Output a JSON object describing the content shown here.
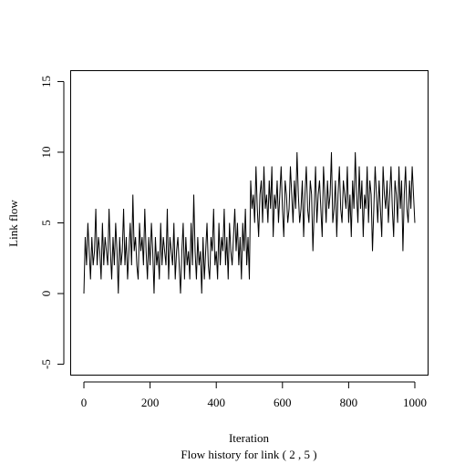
{
  "chart_data": {
    "type": "line",
    "xlabel": "Iteration",
    "ylabel": "Link flow",
    "subtitle": "Flow history for link ( 2 , 5 )",
    "x": [
      0,
      4,
      8,
      12,
      16,
      20,
      24,
      28,
      32,
      36,
      40,
      44,
      48,
      52,
      56,
      60,
      64,
      68,
      72,
      76,
      80,
      84,
      88,
      92,
      96,
      100,
      104,
      108,
      112,
      116,
      120,
      124,
      128,
      132,
      136,
      140,
      144,
      148,
      152,
      156,
      160,
      164,
      168,
      172,
      176,
      180,
      184,
      188,
      192,
      196,
      200,
      204,
      208,
      212,
      216,
      220,
      224,
      228,
      232,
      236,
      240,
      244,
      248,
      252,
      256,
      260,
      264,
      268,
      272,
      276,
      280,
      284,
      288,
      292,
      296,
      300,
      304,
      308,
      312,
      316,
      320,
      324,
      328,
      332,
      336,
      340,
      344,
      348,
      352,
      356,
      360,
      364,
      368,
      372,
      376,
      380,
      384,
      388,
      392,
      396,
      400,
      404,
      408,
      412,
      416,
      420,
      424,
      428,
      432,
      436,
      440,
      444,
      448,
      452,
      456,
      460,
      464,
      468,
      472,
      476,
      480,
      484,
      488,
      492,
      496,
      500,
      504,
      508,
      512,
      516,
      520,
      524,
      528,
      532,
      536,
      540,
      544,
      548,
      552,
      556,
      560,
      564,
      568,
      572,
      576,
      580,
      584,
      588,
      592,
      596,
      600,
      604,
      608,
      612,
      616,
      620,
      624,
      628,
      632,
      636,
      640,
      644,
      648,
      652,
      656,
      660,
      664,
      668,
      672,
      676,
      680,
      684,
      688,
      692,
      696,
      700,
      704,
      708,
      712,
      716,
      720,
      724,
      728,
      732,
      736,
      740,
      744,
      748,
      752,
      756,
      760,
      764,
      768,
      772,
      776,
      780,
      784,
      788,
      792,
      796,
      800,
      804,
      808,
      812,
      816,
      820,
      824,
      828,
      832,
      836,
      840,
      844,
      848,
      852,
      856,
      860,
      864,
      868,
      872,
      876,
      880,
      884,
      888,
      892,
      896,
      900,
      904,
      908,
      912,
      916,
      920,
      924,
      928,
      932,
      936,
      940,
      944,
      948,
      952,
      956,
      960,
      964,
      968,
      972,
      976,
      980,
      984,
      988,
      992,
      996,
      1000
    ],
    "series": [
      {
        "color": "#000000",
        "values": [
          0,
          4,
          2,
          5,
          3,
          1,
          4,
          2,
          3,
          6,
          2,
          4,
          3,
          1,
          5,
          2,
          4,
          3,
          2,
          6,
          3,
          1,
          4,
          2,
          5,
          3,
          0,
          4,
          2,
          3,
          6,
          2,
          4,
          1,
          3,
          5,
          2,
          7,
          3,
          4,
          2,
          1,
          5,
          3,
          4,
          2,
          6,
          3,
          1,
          4,
          2,
          5,
          3,
          0,
          4,
          2,
          3,
          1,
          5,
          2,
          4,
          3,
          2,
          6,
          1,
          4,
          3,
          2,
          5,
          1,
          3,
          4,
          2,
          0,
          3,
          5,
          1,
          4,
          2,
          3,
          1,
          5,
          2,
          7,
          3,
          1,
          4,
          2,
          3,
          0,
          4,
          1,
          3,
          5,
          2,
          1,
          4,
          3,
          6,
          2,
          3,
          1,
          5,
          2,
          4,
          3,
          6,
          2,
          4,
          1,
          5,
          3,
          2,
          4,
          6,
          3,
          5,
          2,
          4,
          1,
          5,
          3,
          6,
          2,
          4,
          1,
          8,
          6,
          7,
          5,
          9,
          6,
          4,
          7,
          8,
          5,
          9,
          6,
          7,
          5,
          8,
          6,
          9,
          4,
          7,
          6,
          8,
          5,
          7,
          9,
          6,
          4,
          8,
          7,
          5,
          6,
          9,
          7,
          5,
          8,
          6,
          10,
          7,
          5,
          6,
          8,
          4,
          7,
          9,
          6,
          5,
          8,
          7,
          3,
          6,
          9,
          5,
          7,
          8,
          6,
          4,
          9,
          7,
          5,
          8,
          6,
          7,
          10,
          5,
          6,
          8,
          4,
          7,
          9,
          6,
          5,
          8,
          7,
          6,
          9,
          5,
          7,
          4,
          8,
          6,
          10,
          7,
          5,
          9,
          6,
          8,
          4,
          7,
          6,
          9,
          5,
          8,
          7,
          3,
          6,
          9,
          7,
          5,
          8,
          6,
          4,
          9,
          7,
          6,
          8,
          5,
          7,
          9,
          6,
          4,
          8,
          7,
          5,
          9,
          6,
          8,
          3,
          7,
          9,
          6,
          5,
          8,
          6,
          9,
          7,
          5
        ]
      }
    ],
    "xlim": [
      -40,
      1040
    ],
    "xticks": [
      0,
      200,
      400,
      600,
      800,
      1000
    ],
    "ylim": [
      -5.77,
      15.77
    ],
    "yticks": [
      -5,
      0,
      5,
      10,
      15
    ]
  }
}
